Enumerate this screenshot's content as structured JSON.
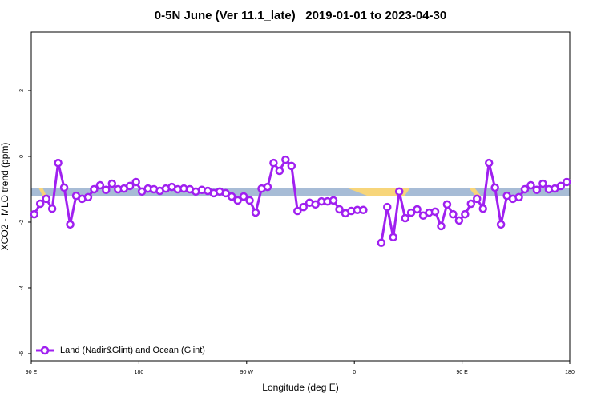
{
  "chart_data": {
    "type": "line",
    "title": "0-5N June (Ver 11.1_late)   2019-01-01 to 2023-04-30",
    "xlabel": "Longitude (deg E)",
    "ylabel": "XCO2 - MLO trend (ppm)",
    "xlim": [
      90,
      540
    ],
    "ylim": [
      -6.22,
      3.78
    ],
    "xticks": [
      {
        "value": 90,
        "label": "90 E"
      },
      {
        "value": 180,
        "label": "180"
      },
      {
        "value": 270,
        "label": "90 W"
      },
      {
        "value": 360,
        "label": "0"
      },
      {
        "value": 450,
        "label": "90 E"
      },
      {
        "value": 540,
        "label": "180"
      }
    ],
    "yticks": [
      -6,
      -4,
      -2,
      0,
      2
    ],
    "legend": "bottomleft",
    "x": [
      92.5,
      97.5,
      102.5,
      107.5,
      112.5,
      117.5,
      122.5,
      127.5,
      132.5,
      137.5,
      142.5,
      147.5,
      152.5,
      157.5,
      162.5,
      167.5,
      172.5,
      177.5,
      182.5,
      187.5,
      192.5,
      197.5,
      202.5,
      207.5,
      212.5,
      217.5,
      222.5,
      227.5,
      232.5,
      237.5,
      242.5,
      247.5,
      252.5,
      257.5,
      262.5,
      267.5,
      272.5,
      277.5,
      282.5,
      287.5,
      292.5,
      297.5,
      302.5,
      307.5,
      312.5,
      317.5,
      322.5,
      327.5,
      332.5,
      337.5,
      342.5,
      347.5,
      352.5,
      357.5,
      362.5,
      367.5,
      372.5,
      377.5,
      382.5,
      387.5,
      392.5,
      397.5,
      402.5,
      407.5,
      412.5,
      417.5,
      422.5,
      427.5,
      432.5,
      437.5,
      442.5,
      447.5,
      452.5,
      457.5,
      462.5,
      467.5,
      472.5,
      477.5,
      482.5,
      487.5,
      492.5,
      497.5,
      502.5,
      507.5,
      512.5,
      517.5,
      522.5,
      527.5,
      532.5,
      537.5
    ],
    "series": [
      {
        "name": "Land (Nadir&Glint) and Ocean (Glint)",
        "color": "#a020f0",
        "values": [
          -1.76,
          -1.44,
          -1.29,
          -1.59,
          -0.2,
          -0.95,
          -2.07,
          -1.2,
          -1.29,
          -1.24,
          -1.0,
          -0.88,
          -1.02,
          -0.83,
          -1.0,
          -0.98,
          -0.9,
          -0.78,
          -1.07,
          -0.98,
          -1.0,
          -1.05,
          -0.98,
          -0.93,
          -1.0,
          -0.98,
          -1.0,
          -1.07,
          -1.02,
          -1.05,
          -1.12,
          -1.07,
          -1.12,
          -1.22,
          -1.34,
          -1.22,
          -1.34,
          -1.71,
          -0.98,
          -0.93,
          -0.2,
          -0.44,
          -0.1,
          -0.29,
          -1.66,
          -1.54,
          -1.41,
          -1.46,
          -1.37,
          -1.37,
          -1.34,
          -1.61,
          -1.73,
          -1.66,
          -1.63,
          -1.63,
          null,
          null,
          -2.63,
          -1.54,
          -2.46,
          -1.07,
          -1.88,
          -1.71,
          -1.61,
          -1.8,
          -1.71,
          -1.68,
          -2.12,
          -1.46,
          -1.76,
          -1.95,
          -1.76,
          -1.44,
          -1.29,
          -1.59,
          -0.2,
          -0.95,
          -2.07,
          -1.2,
          -1.29,
          -1.24,
          -1.0,
          -0.88,
          -1.02,
          -0.83,
          -1.0,
          -0.98,
          -0.9,
          -0.78
        ]
      }
    ]
  }
}
